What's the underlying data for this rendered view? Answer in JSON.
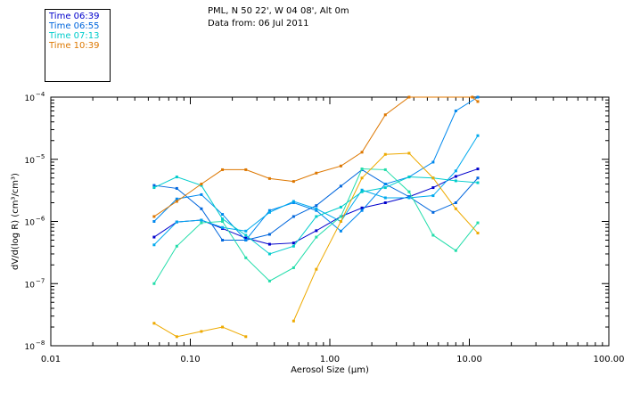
{
  "header": {
    "location": "PML, N 50 22', W 04 08', Alt 0m",
    "date": "Data from: 06 Jul 2011"
  },
  "legend": [
    {
      "label": "Time 06:39",
      "color": "#0000cc"
    },
    {
      "label": "Time 06:55",
      "color": "#0066dd"
    },
    {
      "label": "Time 07:13",
      "color": "#00cccc"
    },
    {
      "label": "Time 10:39",
      "color": "#dd7700"
    }
  ],
  "chart_data": {
    "type": "line",
    "xscale": "log",
    "yscale": "log",
    "xlim": [
      0.01,
      100
    ],
    "ylim": [
      1e-08,
      0.0001
    ],
    "xlabel": "Aerosol Size (μm)",
    "ylabel": "dV/d(log R) (cm³/cm³)",
    "xticks": [
      {
        "value": 0.01,
        "label": "0.01"
      },
      {
        "value": 0.1,
        "label": "0.10"
      },
      {
        "value": 1,
        "label": "1.00"
      },
      {
        "value": 10,
        "label": "10.00"
      },
      {
        "value": 100,
        "label": "100.00"
      }
    ],
    "yticks": [
      {
        "value": 1e-08,
        "mant": "10",
        "exp": "−8"
      },
      {
        "value": 1e-07,
        "mant": "10",
        "exp": "−7"
      },
      {
        "value": 1e-06,
        "mant": "10",
        "exp": "−6"
      },
      {
        "value": 1e-05,
        "mant": "10",
        "exp": "−5"
      },
      {
        "value": 0.0001,
        "mant": "10",
        "exp": "−4"
      }
    ],
    "series": [
      {
        "name": "Time 06:39",
        "color": "#0000cc",
        "x": [
          0.055,
          0.08,
          0.12,
          0.17,
          0.25,
          0.37,
          0.55,
          0.8,
          1.2,
          1.7,
          2.5,
          3.7,
          5.5,
          8,
          11.5
        ],
        "y": [
          5.6e-07,
          9.8e-07,
          1.05e-06,
          7.7e-07,
          5.4e-07,
          4.3e-07,
          4.5e-07,
          7.1e-07,
          1.2e-06,
          1.65e-06,
          2e-06,
          2.5e-06,
          3.5e-06,
          5.3e-06,
          7e-06
        ]
      },
      {
        "name": "Time 06:55",
        "color": "#0066dd",
        "x": [
          0.055,
          0.08,
          0.12,
          0.17,
          0.25,
          0.37,
          0.55,
          0.8,
          1.2,
          1.7,
          2.5,
          3.7,
          5.5,
          8,
          11.5
        ],
        "y": [
          3.8e-06,
          3.4e-06,
          1.6e-06,
          5e-07,
          5e-07,
          6.2e-07,
          1.2e-06,
          1.8e-06,
          3.7e-06,
          6.8e-06,
          4e-06,
          2.5e-06,
          1.4e-06,
          2e-06,
          5e-06
        ]
      },
      {
        "name": "",
        "color": "#0088ee",
        "x": [
          0.055,
          0.08,
          0.12,
          0.17,
          0.25,
          0.37,
          0.55,
          0.8,
          1.2,
          1.7,
          2.5,
          3.7,
          5.5,
          8,
          11.5
        ],
        "y": [
          1e-06,
          2.3e-06,
          2.7e-06,
          1.3e-06,
          5e-07,
          1.5e-06,
          2e-06,
          1.5e-06,
          7e-07,
          1.5e-06,
          4e-06,
          5.2e-06,
          9e-06,
          6e-05,
          0.00011
        ]
      },
      {
        "name": "",
        "color": "#00aaee",
        "x": [
          0.055,
          0.08,
          0.12,
          0.17,
          0.25,
          0.37,
          0.55,
          0.8,
          1.2,
          1.7,
          2.5,
          3.7,
          5.5,
          8,
          11.5
        ],
        "y": [
          4.2e-07,
          9.8e-07,
          1.05e-06,
          8e-07,
          7e-07,
          1.4e-06,
          2.1e-06,
          1.6e-06,
          1e-06,
          3.2e-06,
          2.4e-06,
          2.4e-06,
          2.6e-06,
          6.5e-06,
          2.4e-05
        ]
      },
      {
        "name": "Time 07:13",
        "color": "#00cccc",
        "x": [
          0.055,
          0.08,
          0.12,
          0.17,
          0.25,
          0.37,
          0.55,
          0.8,
          1.2,
          1.7,
          2.5,
          3.7,
          5.5,
          8,
          11.5
        ],
        "y": [
          3.5e-06,
          5.2e-06,
          3.8e-06,
          1.1e-06,
          6e-07,
          3e-07,
          4e-07,
          1.2e-06,
          1.7e-06,
          3e-06,
          3.5e-06,
          5.2e-06,
          5e-06,
          4.5e-06,
          4.2e-06
        ]
      },
      {
        "name": "",
        "color": "#22ddaa",
        "x": [
          0.055,
          0.08,
          0.12,
          0.17,
          0.25,
          0.37,
          0.55,
          0.8,
          1.2,
          1.7,
          2.5,
          3.7,
          5.5,
          8,
          11.5
        ],
        "y": [
          1e-07,
          4e-07,
          9.5e-07,
          1e-06,
          2.6e-07,
          1.1e-07,
          1.8e-07,
          5.6e-07,
          1.2e-06,
          7e-06,
          6.8e-06,
          3e-06,
          6e-07,
          3.4e-07,
          9.5e-07
        ]
      },
      {
        "name": "",
        "color": "#eeaa00",
        "x": [
          0.055,
          0.08,
          0.12,
          0.17,
          0.25
        ],
        "y": [
          2.3e-08,
          1.4e-08,
          1.7e-08,
          2e-08,
          1.4e-08
        ]
      },
      {
        "name": "",
        "color": "#eeaa00",
        "x": [
          0.55,
          0.8,
          1.2,
          1.7,
          2.5,
          3.7,
          5.5,
          8,
          11.5
        ],
        "y": [
          2.5e-08,
          1.7e-07,
          1e-06,
          5e-06,
          1.2e-05,
          1.25e-05,
          5e-06,
          1.6e-06,
          6.5e-07
        ]
      },
      {
        "name": "Time 10:39",
        "color": "#dd7700",
        "x": [
          0.055,
          0.08,
          0.12,
          0.17,
          0.25,
          0.37,
          0.55,
          0.8,
          1.2,
          1.7,
          2.5,
          3.7,
          10.5,
          11.5
        ],
        "y": [
          1.2e-06,
          2.1e-06,
          4e-06,
          6.8e-06,
          6.8e-06,
          4.9e-06,
          4.4e-06,
          6e-06,
          7.8e-06,
          1.3e-05,
          5.2e-05,
          0.00011,
          0.00011,
          8.5e-05
        ]
      }
    ]
  }
}
